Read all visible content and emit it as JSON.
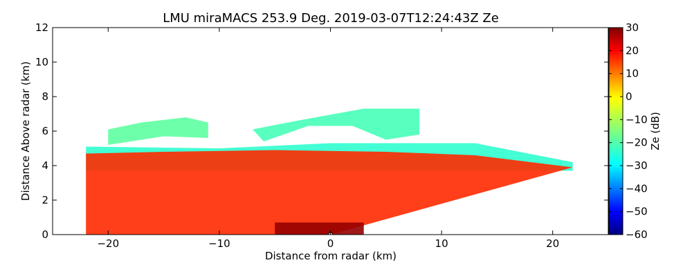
{
  "chart_data": {
    "type": "heatmap",
    "title": "LMU miraMACS 253.9 Deg. 2019-03-07T12:24:43Z  Ze",
    "xlabel": "Distance from radar (km)",
    "ylabel": "Distance Above radar  (km)",
    "xlim": [
      -25,
      25
    ],
    "ylim": [
      0,
      12
    ],
    "xticks": [
      -20,
      -10,
      0,
      10,
      20
    ],
    "yticks": [
      0,
      2,
      4,
      6,
      8,
      10,
      12
    ],
    "grid": false,
    "colorbar": {
      "label": "Ze (dB)",
      "range": [
        -60,
        30
      ],
      "ticks": [
        30,
        20,
        10,
        0,
        -10,
        -20,
        -30,
        -40,
        -50,
        -60
      ],
      "colormap": "jet"
    },
    "regions": [
      {
        "name": "precipitation-core",
        "ze_db": 15,
        "polygon": [
          [
            -22,
            0
          ],
          [
            0,
            0
          ],
          [
            21.8,
            3.9
          ],
          [
            13,
            4.6
          ],
          [
            5,
            4.8
          ],
          [
            -5,
            4.9
          ],
          [
            -15,
            4.8
          ],
          [
            -22,
            4.7
          ]
        ]
      },
      {
        "name": "near-surface-maximum",
        "ze_db": 28,
        "polygon": [
          [
            -5,
            0
          ],
          [
            3,
            0
          ],
          [
            3,
            0.7
          ],
          [
            -5,
            0.7
          ]
        ]
      },
      {
        "name": "upper-cloud-layer",
        "ze_db": -20,
        "polygon": [
          [
            -7,
            6.1
          ],
          [
            -3,
            6.6
          ],
          [
            3,
            7.3
          ],
          [
            8,
            7.3
          ],
          [
            8,
            5.8
          ],
          [
            5,
            5.5
          ],
          [
            2,
            6.3
          ],
          [
            -2,
            6.3
          ],
          [
            -6,
            5.4
          ]
        ]
      },
      {
        "name": "cloud-top-band",
        "ze_db": -22,
        "polygon": [
          [
            -22,
            5.1
          ],
          [
            -10,
            5.0
          ],
          [
            0,
            5.3
          ],
          [
            13,
            5.3
          ],
          [
            21.8,
            4.2
          ],
          [
            21.8,
            3.7
          ],
          [
            -22,
            3.7
          ]
        ]
      },
      {
        "name": "left-cloud-fragments",
        "ze_db": -18,
        "polygon": [
          [
            -20,
            6.1
          ],
          [
            -17,
            6.5
          ],
          [
            -13,
            6.8
          ],
          [
            -11,
            6.5
          ],
          [
            -11,
            5.6
          ],
          [
            -15,
            5.7
          ],
          [
            -20,
            5.2
          ]
        ]
      }
    ],
    "radar_origin": [
      0,
      0
    ]
  }
}
